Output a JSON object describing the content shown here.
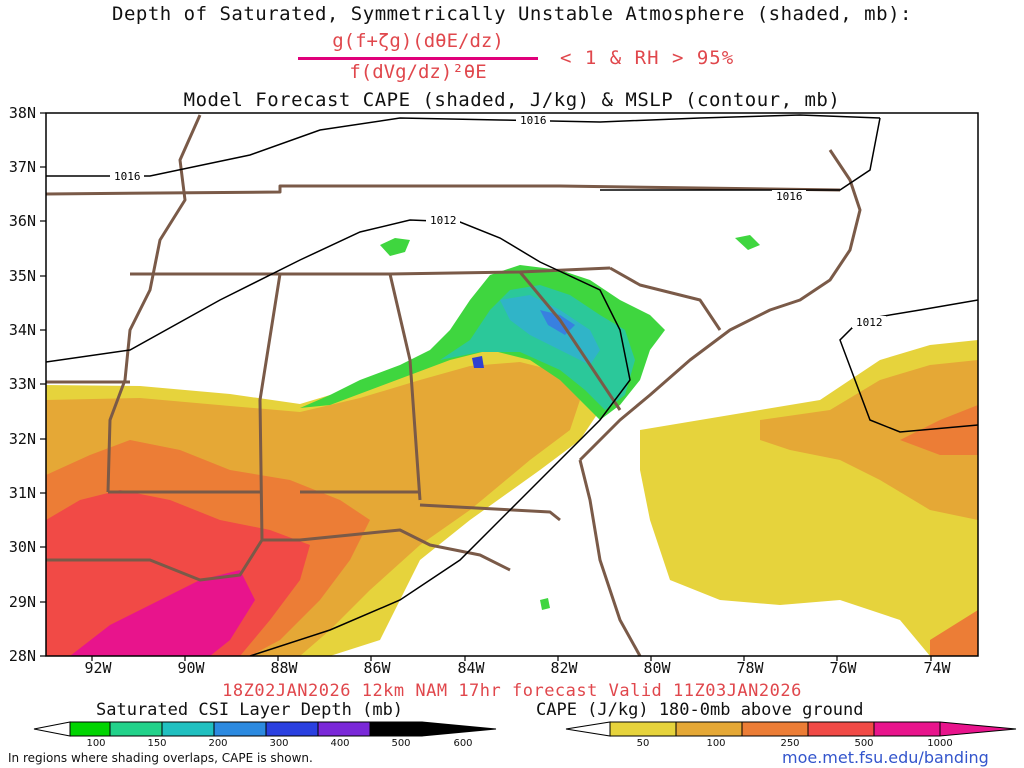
{
  "header": {
    "title_line1": "Depth of Saturated, Symmetrically Unstable Atmosphere (shaded, mb):",
    "formula_numerator": "g(f+ζg)(dθE/dz)",
    "formula_denominator": "f(dVg/dz)²θE",
    "condition": "< 1 & RH > 95%",
    "title_line3": "Model Forecast CAPE (shaded, J/kg) & MSLP (contour, mb)"
  },
  "map": {
    "latitude_labels": [
      "38N",
      "37N",
      "36N",
      "35N",
      "34N",
      "33N",
      "32N",
      "31N",
      "30N",
      "29N",
      "28N"
    ],
    "longitude_labels": [
      "92W",
      "90W",
      "88W",
      "86W",
      "84W",
      "82W",
      "80W",
      "78W",
      "76W",
      "74W"
    ],
    "isobar_labels": [
      "1016",
      "1016",
      "1016",
      "1012",
      "1012"
    ],
    "colors": {
      "border": "#7a5a48",
      "isobar": "#000000",
      "cape_50": "#e6d33c",
      "cape_100": "#e5a836",
      "cape_250": "#ec7d36",
      "cape_500": "#f14a46",
      "cape_1000": "#e8148c",
      "csi_100": "#3fd63f",
      "csi_150": "#2bc89a",
      "csi_200": "#30b4c8",
      "csi_300": "#3880e0",
      "csi_400": "#3040d0"
    }
  },
  "footer": {
    "valid_line": "18Z02JAN2026 12km NAM 17hr forecast Valid 11Z03JAN2026",
    "colorbar_csi_title": "Saturated CSI Layer Depth (mb)",
    "colorbar_cape_title": "CAPE (J/kg) 180-0mb above ground",
    "csi_ticks": [
      "100",
      "150",
      "200",
      "300",
      "400",
      "500",
      "600"
    ],
    "cape_ticks": [
      "50",
      "100",
      "250",
      "500",
      "1000"
    ],
    "csi_colors": [
      "#00d400",
      "#22d28a",
      "#20c0c0",
      "#2c8ae0",
      "#2a40e0",
      "#7a28d8",
      "#000000"
    ],
    "cape_colors": [
      "#e6d33c",
      "#e5a836",
      "#ec7d36",
      "#f14a46",
      "#e8148c"
    ],
    "note": "In regions where shading overlaps, CAPE is shown.",
    "url": "moe.met.fsu.edu/banding"
  }
}
